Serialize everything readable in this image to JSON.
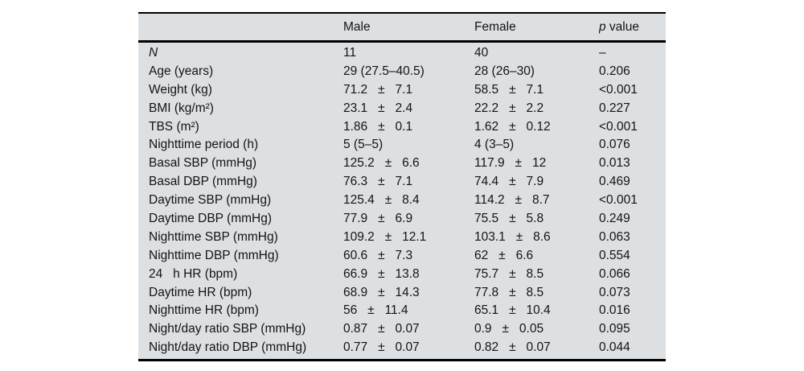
{
  "table": {
    "headers": {
      "label": "",
      "male": "Male",
      "female": "Female",
      "p_prefix": "p",
      "p_suffix": " value"
    },
    "rows": [
      {
        "label": "N",
        "italic": true,
        "male": "11",
        "female": "40",
        "p": "–"
      },
      {
        "label": "Age (years)",
        "male": "29 (27.5–40.5)",
        "female": "28 (26–30)",
        "p": "0.206"
      },
      {
        "label": "Weight (kg)",
        "male": "71.2   ±   7.1",
        "female": "58.5   ±   7.1",
        "p": "<0.001"
      },
      {
        "label": "BMI (kg/m²)",
        "male": "23.1   ±   2.4",
        "female": "22.2   ±   2.2",
        "p": "0.227"
      },
      {
        "label": "TBS (m²)",
        "male": "1.86   ±   0.1",
        "female": "1.62   ±   0.12",
        "p": "<0.001"
      },
      {
        "label": "Nighttime period (h)",
        "male": "5 (5–5)",
        "female": "4 (3–5)",
        "p": "0.076"
      },
      {
        "label": "Basal SBP (mmHg)",
        "male": "125.2   ±   6.6",
        "female": "117.9   ±   12",
        "p": "0.013"
      },
      {
        "label": "Basal DBP (mmHg)",
        "male": "76.3   ±   7.1",
        "female": "74.4   ±   7.9",
        "p": "0.469"
      },
      {
        "label": "Daytime SBP (mmHg)",
        "male": "125.4   ±   8.4",
        "female": "114.2   ±   8.7",
        "p": "<0.001"
      },
      {
        "label": "Daytime DBP (mmHg)",
        "male": "77.9   ±   6.9",
        "female": "75.5   ±   5.8",
        "p": "0.249"
      },
      {
        "label": "Nighttime SBP (mmHg)",
        "male": "109.2   ±   12.1",
        "female": "103.1   ±   8.6",
        "p": "0.063"
      },
      {
        "label": "Nighttime DBP (mmHg)",
        "male": "60.6   ±   7.3",
        "female": "62   ±   6.6",
        "p": "0.554"
      },
      {
        "label": "24   h HR (bpm)",
        "male": "66.9   ±   13.8",
        "female": "75.7   ±   8.5",
        "p": "0.066"
      },
      {
        "label": "Daytime HR (bpm)",
        "male": "68.9   ±   14.3",
        "female": "77.8   ±   8.5",
        "p": "0.073"
      },
      {
        "label": "Nighttime HR (bpm)",
        "male": "56   ±   11.4",
        "female": "65.1   ±   10.4",
        "p": "0.016"
      },
      {
        "label": "Night/day ratio SBP (mmHg)",
        "male": "0.87   ±   0.07",
        "female": "0.9   ±   0.05",
        "p": "0.095"
      },
      {
        "label": "Night/day ratio DBP (mmHg)",
        "male": "0.77   ±   0.07",
        "female": "0.82   ±   0.07",
        "p": "0.044"
      }
    ],
    "colors": {
      "background": "#dde0e3",
      "border": "#000000",
      "text": "#131313",
      "page_background": "#ffffff"
    }
  }
}
